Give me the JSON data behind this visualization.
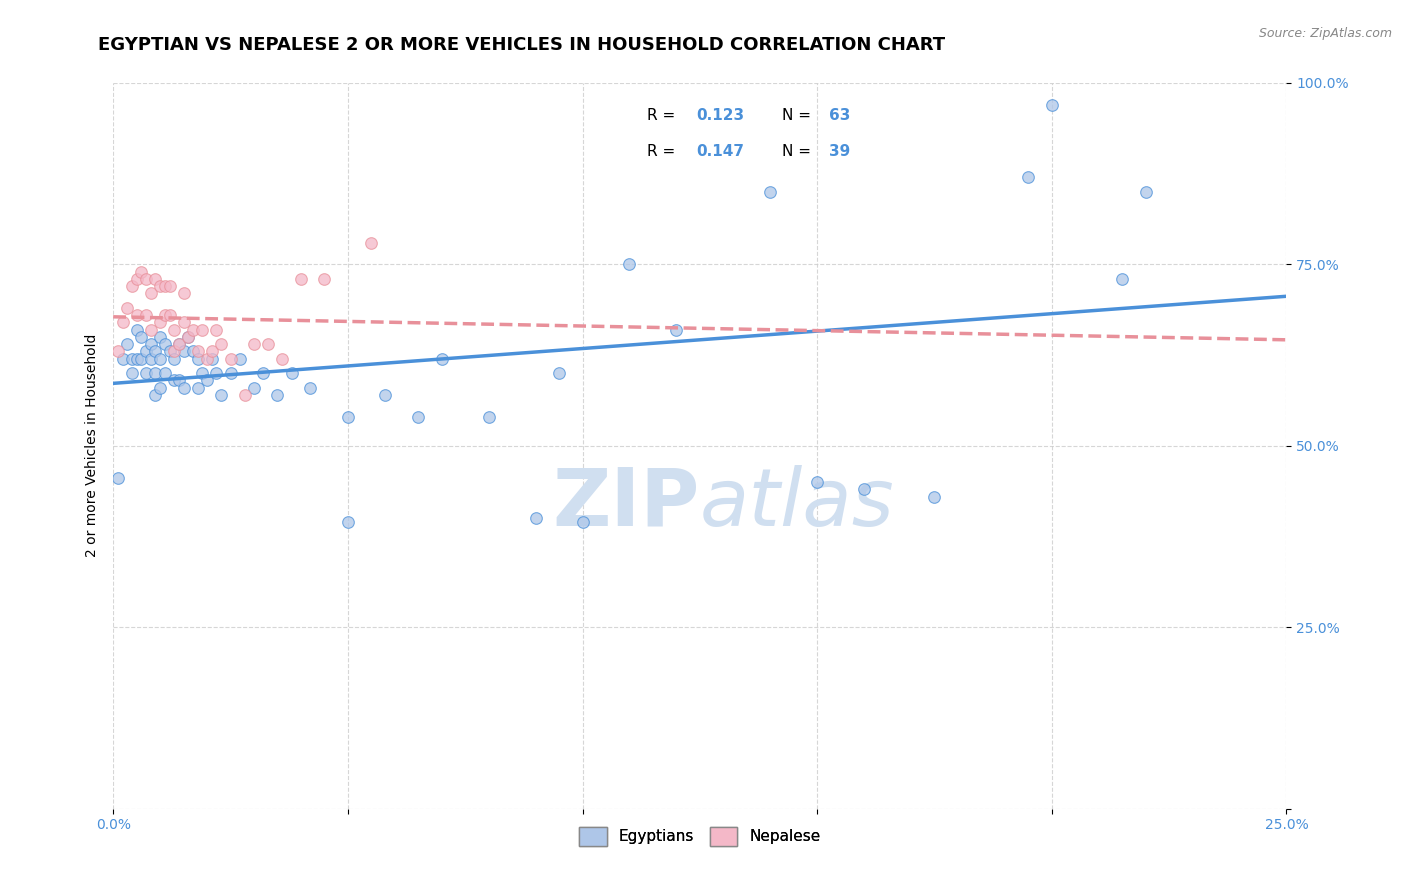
{
  "title": "EGYPTIAN VS NEPALESE 2 OR MORE VEHICLES IN HOUSEHOLD CORRELATION CHART",
  "source_text": "Source: ZipAtlas.com",
  "ylabel": "2 or more Vehicles in Household",
  "xlim": [
    0.0,
    0.25
  ],
  "ylim": [
    0.0,
    1.0
  ],
  "xtick_positions": [
    0.0,
    0.05,
    0.1,
    0.15,
    0.2,
    0.25
  ],
  "xticklabels": [
    "0.0%",
    "",
    "",
    "",
    "",
    "25.0%"
  ],
  "ytick_positions": [
    0.0,
    0.25,
    0.5,
    0.75,
    1.0
  ],
  "yticklabels": [
    "",
    "25.0%",
    "50.0%",
    "75.0%",
    "100.0%"
  ],
  "egyptian_color": "#aec6e8",
  "nepalese_color": "#f4b8c8",
  "egyptian_line_color": "#4a90d9",
  "nepalese_line_color": "#e8909a",
  "marker_size": 70,
  "title_fontsize": 13,
  "axis_label_fontsize": 10,
  "tick_fontsize": 10,
  "watermark_color": "#d0dff0",
  "egyptian_scatter_x": [
    0.001,
    0.002,
    0.003,
    0.004,
    0.004,
    0.005,
    0.005,
    0.006,
    0.006,
    0.007,
    0.007,
    0.008,
    0.008,
    0.009,
    0.009,
    0.009,
    0.01,
    0.01,
    0.01,
    0.011,
    0.011,
    0.012,
    0.013,
    0.013,
    0.014,
    0.014,
    0.015,
    0.015,
    0.016,
    0.017,
    0.018,
    0.018,
    0.019,
    0.02,
    0.021,
    0.022,
    0.023,
    0.025,
    0.027,
    0.03,
    0.032,
    0.035,
    0.038,
    0.042,
    0.05,
    0.058,
    0.065,
    0.07,
    0.08,
    0.095,
    0.11,
    0.12,
    0.14,
    0.15,
    0.175,
    0.195,
    0.215,
    0.05,
    0.09,
    0.1,
    0.16,
    0.2,
    0.22
  ],
  "egyptian_scatter_y": [
    0.455,
    0.62,
    0.64,
    0.62,
    0.6,
    0.66,
    0.62,
    0.65,
    0.62,
    0.63,
    0.6,
    0.64,
    0.62,
    0.63,
    0.6,
    0.57,
    0.65,
    0.62,
    0.58,
    0.64,
    0.6,
    0.63,
    0.62,
    0.59,
    0.64,
    0.59,
    0.63,
    0.58,
    0.65,
    0.63,
    0.62,
    0.58,
    0.6,
    0.59,
    0.62,
    0.6,
    0.57,
    0.6,
    0.62,
    0.58,
    0.6,
    0.57,
    0.6,
    0.58,
    0.54,
    0.57,
    0.54,
    0.62,
    0.54,
    0.6,
    0.75,
    0.66,
    0.85,
    0.45,
    0.43,
    0.87,
    0.73,
    0.395,
    0.4,
    0.395,
    0.44,
    0.97,
    0.85
  ],
  "nepalese_scatter_x": [
    0.001,
    0.002,
    0.003,
    0.004,
    0.005,
    0.005,
    0.006,
    0.007,
    0.007,
    0.008,
    0.008,
    0.009,
    0.01,
    0.01,
    0.011,
    0.011,
    0.012,
    0.012,
    0.013,
    0.013,
    0.014,
    0.015,
    0.015,
    0.016,
    0.017,
    0.018,
    0.019,
    0.02,
    0.021,
    0.022,
    0.023,
    0.025,
    0.028,
    0.03,
    0.033,
    0.036,
    0.04,
    0.045,
    0.055
  ],
  "nepalese_scatter_y": [
    0.63,
    0.67,
    0.69,
    0.72,
    0.73,
    0.68,
    0.74,
    0.73,
    0.68,
    0.71,
    0.66,
    0.73,
    0.72,
    0.67,
    0.72,
    0.68,
    0.72,
    0.68,
    0.66,
    0.63,
    0.64,
    0.71,
    0.67,
    0.65,
    0.66,
    0.63,
    0.66,
    0.62,
    0.63,
    0.66,
    0.64,
    0.62,
    0.57,
    0.64,
    0.64,
    0.62,
    0.73,
    0.73,
    0.78
  ]
}
